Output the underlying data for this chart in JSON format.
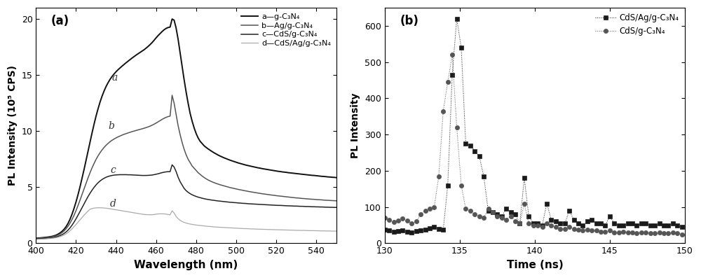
{
  "panel_a": {
    "title": "(a)",
    "xlabel": "Wavelength (nm)",
    "ylabel": "PL Intensity (10⁵ CPS)",
    "xlim": [
      400,
      550
    ],
    "ylim": [
      0,
      21
    ],
    "yticks": [
      0,
      5,
      10,
      15,
      20
    ],
    "xticks": [
      400,
      420,
      440,
      460,
      480,
      500,
      520,
      540
    ],
    "curve_colors": [
      "#111111",
      "#555555",
      "#222222",
      "#aaaaaa"
    ],
    "curve_linewidths": [
      1.4,
      1.1,
      1.1,
      0.9
    ],
    "curve_linestyles": [
      "-",
      "-",
      "-",
      "-"
    ],
    "wavelengths": [
      400,
      401,
      402,
      403,
      404,
      405,
      406,
      407,
      408,
      409,
      410,
      411,
      412,
      413,
      414,
      415,
      416,
      417,
      418,
      419,
      420,
      421,
      422,
      423,
      424,
      425,
      426,
      427,
      428,
      429,
      430,
      431,
      432,
      433,
      434,
      435,
      436,
      437,
      438,
      439,
      440,
      441,
      442,
      443,
      444,
      445,
      446,
      447,
      448,
      449,
      450,
      451,
      452,
      453,
      454,
      455,
      456,
      457,
      458,
      459,
      460,
      461,
      462,
      463,
      464,
      465,
      466,
      467,
      468,
      469,
      470,
      471,
      472,
      473,
      474,
      475,
      476,
      477,
      478,
      479,
      480,
      481,
      482,
      483,
      484,
      485,
      486,
      487,
      488,
      489,
      490,
      491,
      492,
      493,
      494,
      495,
      496,
      497,
      498,
      499,
      500,
      501,
      502,
      503,
      504,
      505,
      506,
      507,
      508,
      509,
      510,
      511,
      512,
      513,
      514,
      515,
      516,
      517,
      518,
      519,
      520,
      521,
      522,
      523,
      524,
      525,
      526,
      527,
      528,
      529,
      530,
      531,
      532,
      533,
      534,
      535,
      536,
      537,
      538,
      539,
      540,
      541,
      542,
      543,
      544,
      545,
      546,
      547,
      548,
      549,
      550
    ],
    "curve_a": [
      0.45,
      0.47,
      0.48,
      0.5,
      0.52,
      0.54,
      0.56,
      0.59,
      0.62,
      0.67,
      0.73,
      0.82,
      0.93,
      1.07,
      1.25,
      1.48,
      1.78,
      2.15,
      2.6,
      3.12,
      3.7,
      4.35,
      5.05,
      5.8,
      6.58,
      7.4,
      8.22,
      9.05,
      9.85,
      10.62,
      11.35,
      12.0,
      12.6,
      13.12,
      13.58,
      13.98,
      14.32,
      14.62,
      14.88,
      15.1,
      15.3,
      15.48,
      15.64,
      15.8,
      15.95,
      16.1,
      16.24,
      16.38,
      16.52,
      16.65,
      16.78,
      16.9,
      17.02,
      17.14,
      17.26,
      17.4,
      17.55,
      17.72,
      17.9,
      18.1,
      18.32,
      18.52,
      18.7,
      18.88,
      19.04,
      19.16,
      19.24,
      19.28,
      20.0,
      19.9,
      19.2,
      18.2,
      17.0,
      15.8,
      14.6,
      13.5,
      12.5,
      11.6,
      10.9,
      10.3,
      9.8,
      9.4,
      9.1,
      8.9,
      8.7,
      8.55,
      8.42,
      8.3,
      8.18,
      8.07,
      7.97,
      7.87,
      7.78,
      7.7,
      7.62,
      7.55,
      7.48,
      7.41,
      7.35,
      7.29,
      7.23,
      7.17,
      7.12,
      7.07,
      7.02,
      6.97,
      6.93,
      6.89,
      6.85,
      6.81,
      6.77,
      6.73,
      6.7,
      6.66,
      6.63,
      6.6,
      6.57,
      6.54,
      6.51,
      6.48,
      6.45,
      6.42,
      6.4,
      6.37,
      6.35,
      6.33,
      6.3,
      6.28,
      6.26,
      6.24,
      6.22,
      6.2,
      6.18,
      6.16,
      6.14,
      6.12,
      6.1,
      6.08,
      6.06,
      6.05,
      6.03,
      6.01,
      5.99,
      5.97,
      5.96,
      5.94,
      5.92,
      5.91,
      5.89,
      5.88,
      5.86
    ],
    "curve_b": [
      0.42,
      0.44,
      0.45,
      0.47,
      0.49,
      0.51,
      0.53,
      0.55,
      0.58,
      0.62,
      0.67,
      0.74,
      0.83,
      0.95,
      1.1,
      1.29,
      1.52,
      1.8,
      2.13,
      2.5,
      2.92,
      3.38,
      3.86,
      4.36,
      4.86,
      5.36,
      5.84,
      6.3,
      6.73,
      7.12,
      7.48,
      7.8,
      8.08,
      8.33,
      8.55,
      8.74,
      8.91,
      9.06,
      9.19,
      9.3,
      9.4,
      9.49,
      9.57,
      9.65,
      9.72,
      9.78,
      9.84,
      9.9,
      9.96,
      10.01,
      10.06,
      10.11,
      10.16,
      10.21,
      10.26,
      10.32,
      10.38,
      10.45,
      10.53,
      10.62,
      10.72,
      10.83,
      10.94,
      11.05,
      11.15,
      11.23,
      11.3,
      11.34,
      13.2,
      12.5,
      11.5,
      10.5,
      9.7,
      9.0,
      8.4,
      7.9,
      7.5,
      7.2,
      6.9,
      6.7,
      6.5,
      6.3,
      6.15,
      6.0,
      5.87,
      5.75,
      5.65,
      5.56,
      5.48,
      5.41,
      5.34,
      5.28,
      5.22,
      5.17,
      5.12,
      5.07,
      5.02,
      4.97,
      4.93,
      4.89,
      4.85,
      4.81,
      4.77,
      4.74,
      4.7,
      4.67,
      4.63,
      4.6,
      4.57,
      4.54,
      4.51,
      4.48,
      4.45,
      4.42,
      4.4,
      4.37,
      4.35,
      4.32,
      4.3,
      4.28,
      4.25,
      4.23,
      4.21,
      4.19,
      4.17,
      4.15,
      4.13,
      4.11,
      4.09,
      4.07,
      4.05,
      4.04,
      4.02,
      4.0,
      3.99,
      3.97,
      3.96,
      3.94,
      3.93,
      3.92,
      3.9,
      3.89,
      3.88,
      3.87,
      3.85,
      3.84,
      3.83,
      3.82,
      3.81,
      3.8,
      3.79
    ],
    "curve_c": [
      0.38,
      0.39,
      0.4,
      0.42,
      0.43,
      0.45,
      0.46,
      0.48,
      0.5,
      0.53,
      0.57,
      0.62,
      0.69,
      0.77,
      0.88,
      1.01,
      1.18,
      1.38,
      1.62,
      1.89,
      2.19,
      2.51,
      2.84,
      3.18,
      3.52,
      3.85,
      4.17,
      4.47,
      4.74,
      4.99,
      5.21,
      5.4,
      5.56,
      5.69,
      5.8,
      5.89,
      5.96,
      6.01,
      6.05,
      6.08,
      6.1,
      6.11,
      6.12,
      6.12,
      6.12,
      6.12,
      6.11,
      6.11,
      6.1,
      6.09,
      6.08,
      6.07,
      6.06,
      6.05,
      6.05,
      6.05,
      6.06,
      6.07,
      6.09,
      6.12,
      6.16,
      6.2,
      6.25,
      6.3,
      6.34,
      6.37,
      6.39,
      6.39,
      7.0,
      6.8,
      6.4,
      5.9,
      5.5,
      5.2,
      4.9,
      4.7,
      4.55,
      4.43,
      4.33,
      4.25,
      4.18,
      4.12,
      4.07,
      4.02,
      3.98,
      3.94,
      3.91,
      3.88,
      3.85,
      3.83,
      3.8,
      3.78,
      3.76,
      3.74,
      3.72,
      3.7,
      3.68,
      3.66,
      3.65,
      3.63,
      3.62,
      3.6,
      3.59,
      3.57,
      3.56,
      3.55,
      3.53,
      3.52,
      3.51,
      3.5,
      3.49,
      3.48,
      3.47,
      3.46,
      3.45,
      3.44,
      3.43,
      3.42,
      3.41,
      3.4,
      3.39,
      3.38,
      3.38,
      3.37,
      3.36,
      3.35,
      3.34,
      3.34,
      3.33,
      3.32,
      3.32,
      3.31,
      3.3,
      3.3,
      3.29,
      3.28,
      3.28,
      3.27,
      3.26,
      3.26,
      3.25,
      3.25,
      3.24,
      3.24,
      3.23,
      3.22,
      3.22,
      3.21,
      3.21,
      3.2,
      3.2
    ],
    "curve_d": [
      0.35,
      0.36,
      0.37,
      0.38,
      0.39,
      0.4,
      0.42,
      0.43,
      0.45,
      0.47,
      0.5,
      0.54,
      0.59,
      0.66,
      0.74,
      0.84,
      0.97,
      1.12,
      1.29,
      1.48,
      1.68,
      1.89,
      2.1,
      2.31,
      2.51,
      2.7,
      2.88,
      3.04,
      3.1,
      3.14,
      3.16,
      3.17,
      3.17,
      3.16,
      3.15,
      3.13,
      3.11,
      3.08,
      3.05,
      3.02,
      2.99,
      2.96,
      2.93,
      2.9,
      2.87,
      2.84,
      2.81,
      2.78,
      2.75,
      2.72,
      2.69,
      2.66,
      2.63,
      2.6,
      2.58,
      2.56,
      2.55,
      2.54,
      2.55,
      2.57,
      2.6,
      2.62,
      2.63,
      2.63,
      2.62,
      2.6,
      2.57,
      2.54,
      2.9,
      2.7,
      2.4,
      2.2,
      2.05,
      1.95,
      1.87,
      1.81,
      1.76,
      1.72,
      1.69,
      1.66,
      1.63,
      1.61,
      1.59,
      1.57,
      1.55,
      1.53,
      1.51,
      1.5,
      1.48,
      1.47,
      1.45,
      1.44,
      1.43,
      1.42,
      1.41,
      1.4,
      1.39,
      1.38,
      1.37,
      1.36,
      1.35,
      1.34,
      1.33,
      1.32,
      1.31,
      1.31,
      1.3,
      1.29,
      1.28,
      1.28,
      1.27,
      1.26,
      1.26,
      1.25,
      1.25,
      1.24,
      1.23,
      1.23,
      1.22,
      1.22,
      1.21,
      1.21,
      1.2,
      1.2,
      1.19,
      1.19,
      1.18,
      1.18,
      1.17,
      1.17,
      1.16,
      1.16,
      1.15,
      1.15,
      1.15,
      1.14,
      1.14,
      1.13,
      1.13,
      1.13,
      1.12,
      1.12,
      1.11,
      1.11,
      1.11,
      1.1,
      1.1,
      1.1,
      1.09,
      1.09,
      1.09
    ],
    "label_positions": [
      [
        438,
        14.5,
        "a"
      ],
      [
        436,
        10.2,
        "b"
      ],
      [
        437,
        6.3,
        "c"
      ],
      [
        437,
        3.3,
        "d"
      ]
    ],
    "legend_texts": [
      "a—g-C₃N₄",
      "b—Ag/g-C₃N₄",
      "c—CdS/g-C₃N₄",
      "d—CdS/Ag/g-C₃N₄"
    ]
  },
  "panel_b": {
    "title": "(b)",
    "xlabel": "Time (ns)",
    "ylabel": "PL Intensity",
    "xlim": [
      130,
      150
    ],
    "ylim": [
      0,
      650
    ],
    "yticks": [
      0,
      100,
      200,
      300,
      400,
      500,
      600
    ],
    "xticks": [
      130,
      135,
      140,
      145,
      150
    ],
    "s1_color": "#1a1a1a",
    "s2_color": "#555555",
    "s1_marker": "s",
    "s2_marker": "o",
    "s1_x": [
      130.0,
      130.3,
      130.6,
      130.9,
      131.2,
      131.5,
      131.8,
      132.1,
      132.4,
      132.7,
      133.0,
      133.3,
      133.6,
      133.9,
      134.2,
      134.5,
      134.8,
      135.1,
      135.4,
      135.7,
      136.0,
      136.3,
      136.6,
      136.9,
      137.2,
      137.5,
      137.8,
      138.1,
      138.4,
      138.7,
      139.0,
      139.3,
      139.6,
      139.9,
      140.2,
      140.5,
      140.8,
      141.1,
      141.4,
      141.7,
      142.0,
      142.3,
      142.6,
      142.9,
      143.2,
      143.5,
      143.8,
      144.1,
      144.4,
      144.7,
      145.0,
      145.3,
      145.6,
      145.9,
      146.2,
      146.5,
      146.8,
      147.1,
      147.4,
      147.7,
      148.0,
      148.3,
      148.6,
      148.9,
      149.2,
      149.5,
      149.8
    ],
    "s1_y": [
      38,
      35,
      32,
      33,
      35,
      32,
      30,
      33,
      35,
      38,
      42,
      45,
      40,
      38,
      160,
      465,
      620,
      540,
      275,
      270,
      255,
      240,
      185,
      90,
      85,
      80,
      75,
      95,
      85,
      80,
      55,
      180,
      75,
      55,
      55,
      50,
      110,
      65,
      60,
      55,
      55,
      90,
      65,
      55,
      50,
      60,
      65,
      55,
      55,
      50,
      75,
      55,
      50,
      50,
      55,
      55,
      50,
      55,
      55,
      50,
      50,
      55,
      50,
      50,
      55,
      50,
      45
    ],
    "s2_x": [
      130.0,
      130.3,
      130.6,
      130.9,
      131.2,
      131.5,
      131.8,
      132.1,
      132.4,
      132.7,
      133.0,
      133.3,
      133.6,
      133.9,
      134.2,
      134.5,
      134.8,
      135.1,
      135.4,
      135.7,
      136.0,
      136.3,
      136.6,
      136.9,
      137.2,
      137.5,
      137.8,
      138.1,
      138.4,
      138.7,
      139.0,
      139.3,
      139.6,
      139.9,
      140.2,
      140.5,
      140.8,
      141.1,
      141.4,
      141.7,
      142.0,
      142.3,
      142.6,
      142.9,
      143.2,
      143.5,
      143.8,
      144.1,
      144.4,
      144.7,
      145.0,
      145.3,
      145.6,
      145.9,
      146.2,
      146.5,
      146.8,
      147.1,
      147.4,
      147.7,
      148.0,
      148.3,
      148.6,
      148.9,
      149.2,
      149.5,
      149.8
    ],
    "s2_y": [
      70,
      65,
      58,
      62,
      68,
      62,
      55,
      60,
      80,
      90,
      95,
      100,
      185,
      365,
      445,
      520,
      320,
      160,
      95,
      90,
      80,
      75,
      70,
      95,
      85,
      75,
      70,
      65,
      75,
      60,
      55,
      110,
      55,
      50,
      50,
      45,
      55,
      50,
      45,
      40,
      40,
      45,
      40,
      38,
      35,
      38,
      35,
      35,
      32,
      32,
      35,
      30,
      30,
      32,
      30,
      30,
      28,
      30,
      30,
      28,
      28,
      30,
      28,
      28,
      30,
      28,
      25
    ],
    "legend_labels": [
      "CdS/Ag/g-C₃N₄",
      "CdS/g-C₃N₄"
    ]
  }
}
